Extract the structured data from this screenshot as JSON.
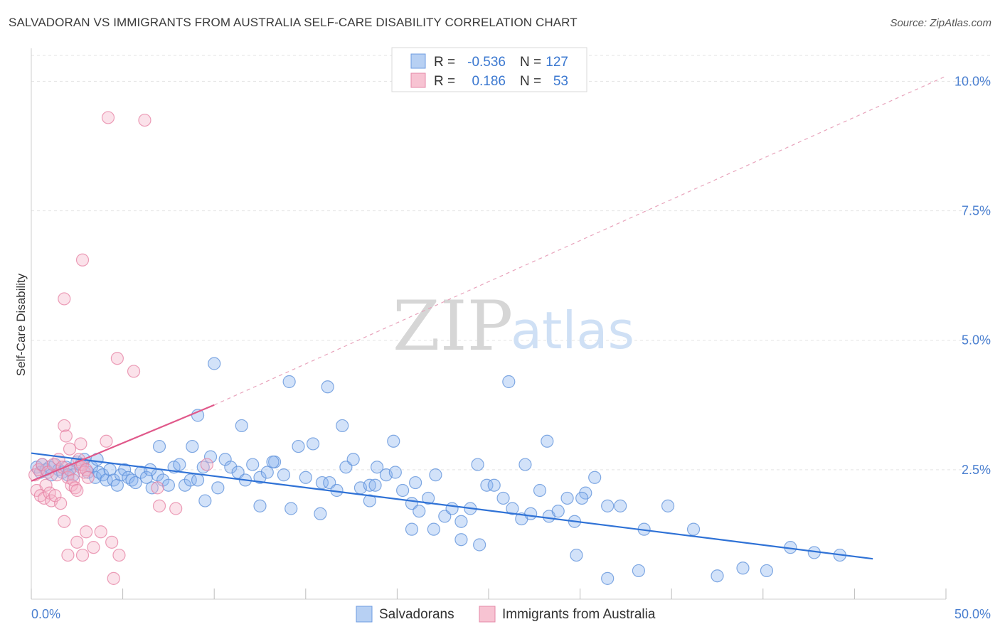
{
  "title": "SALVADORAN VS IMMIGRANTS FROM AUSTRALIA SELF-CARE DISABILITY CORRELATION CHART",
  "source": "Source: ZipAtlas.com",
  "watermark": {
    "zip": "ZIP",
    "atlas": "atlas"
  },
  "chart_data": {
    "type": "scatter",
    "xlabel": "",
    "ylabel": "Self-Care Disability",
    "xlim": [
      0,
      50
    ],
    "ylim": [
      0,
      10.5
    ],
    "x_tick_labels": [
      "0.0%",
      "50.0%"
    ],
    "x_ticks": [
      0,
      5,
      10,
      15,
      20,
      25,
      30,
      35,
      40,
      45,
      50
    ],
    "y_ticks": [
      2.5,
      5.0,
      7.5,
      10.0
    ],
    "y_tick_labels": [
      "2.5%",
      "5.0%",
      "7.5%",
      "10.0%"
    ],
    "legend": {
      "entries": [
        {
          "r_label": "R =",
          "r_value": "-0.536",
          "n_label": "N =",
          "n_value": "127"
        },
        {
          "r_label": "R =",
          "r_value": "0.186",
          "n_label": "N =",
          "n_value": "53"
        }
      ]
    },
    "series": [
      {
        "name": "Salvadorans",
        "color": "#8ab4ee",
        "stroke": "#5b8fd9",
        "trend": {
          "x0": 0,
          "y0": 2.82,
          "x1": 46,
          "y1": 0.78,
          "color": "#2f72d6"
        },
        "points": [
          [
            0.3,
            2.55
          ],
          [
            0.5,
            2.45
          ],
          [
            0.6,
            2.6
          ],
          [
            0.8,
            2.5
          ],
          [
            1.0,
            2.55
          ],
          [
            1.1,
            2.4
          ],
          [
            1.3,
            2.6
          ],
          [
            1.5,
            2.5
          ],
          [
            1.7,
            2.45
          ],
          [
            1.9,
            2.55
          ],
          [
            2.1,
            2.5
          ],
          [
            2.3,
            2.4
          ],
          [
            2.5,
            2.65
          ],
          [
            2.7,
            2.6
          ],
          [
            2.9,
            2.7
          ],
          [
            3.1,
            2.45
          ],
          [
            3.3,
            2.55
          ],
          [
            3.5,
            2.35
          ],
          [
            3.7,
            2.45
          ],
          [
            3.9,
            2.4
          ],
          [
            4.1,
            2.3
          ],
          [
            4.3,
            2.5
          ],
          [
            4.5,
            2.3
          ],
          [
            4.7,
            2.2
          ],
          [
            4.9,
            2.4
          ],
          [
            5.1,
            2.5
          ],
          [
            5.3,
            2.35
          ],
          [
            5.5,
            2.3
          ],
          [
            5.7,
            2.25
          ],
          [
            6.0,
            2.45
          ],
          [
            6.3,
            2.35
          ],
          [
            6.6,
            2.15
          ],
          [
            6.9,
            2.4
          ],
          [
            7.2,
            2.3
          ],
          [
            7.5,
            2.2
          ],
          [
            7.8,
            2.55
          ],
          [
            8.1,
            2.6
          ],
          [
            8.4,
            2.2
          ],
          [
            8.7,
            2.3
          ],
          [
            9.1,
            2.3
          ],
          [
            9.4,
            2.55
          ],
          [
            9.8,
            2.75
          ],
          [
            10.2,
            2.15
          ],
          [
            10.6,
            2.7
          ],
          [
            10.9,
            2.55
          ],
          [
            11.3,
            2.45
          ],
          [
            11.7,
            2.3
          ],
          [
            12.1,
            2.6
          ],
          [
            12.5,
            2.35
          ],
          [
            12.9,
            2.45
          ],
          [
            13.3,
            2.65
          ],
          [
            13.8,
            2.4
          ],
          [
            14.2,
            1.75
          ],
          [
            14.6,
            2.95
          ],
          [
            15.0,
            2.35
          ],
          [
            15.4,
            3.0
          ],
          [
            15.9,
            2.25
          ],
          [
            16.3,
            2.25
          ],
          [
            16.7,
            2.1
          ],
          [
            17.2,
            2.55
          ],
          [
            17.6,
            2.7
          ],
          [
            18.0,
            2.15
          ],
          [
            18.5,
            2.2
          ],
          [
            18.9,
            2.55
          ],
          [
            19.4,
            2.4
          ],
          [
            19.9,
            2.45
          ],
          [
            20.3,
            2.1
          ],
          [
            20.8,
            1.85
          ],
          [
            21.2,
            1.7
          ],
          [
            21.7,
            1.95
          ],
          [
            22.1,
            2.4
          ],
          [
            22.6,
            1.6
          ],
          [
            23.0,
            1.75
          ],
          [
            23.5,
            1.5
          ],
          [
            24.0,
            1.75
          ],
          [
            24.4,
            2.6
          ],
          [
            24.9,
            2.2
          ],
          [
            25.3,
            2.2
          ],
          [
            25.8,
            1.95
          ],
          [
            26.3,
            1.75
          ],
          [
            26.8,
            1.55
          ],
          [
            27.3,
            1.65
          ],
          [
            27.8,
            2.1
          ],
          [
            28.3,
            1.6
          ],
          [
            28.8,
            1.7
          ],
          [
            29.3,
            1.95
          ],
          [
            29.7,
            1.5
          ],
          [
            30.3,
            2.05
          ],
          [
            30.8,
            2.35
          ],
          [
            31.5,
            1.8
          ],
          [
            32.2,
            1.8
          ],
          [
            33.5,
            1.35
          ],
          [
            34.8,
            1.8
          ],
          [
            36.2,
            1.35
          ],
          [
            37.5,
            0.45
          ],
          [
            38.9,
            0.6
          ],
          [
            40.2,
            0.55
          ],
          [
            41.5,
            1.0
          ],
          [
            42.8,
            0.9
          ],
          [
            44.2,
            0.85
          ],
          [
            10.0,
            4.55
          ],
          [
            14.1,
            4.2
          ],
          [
            16.2,
            4.1
          ],
          [
            17.0,
            3.35
          ],
          [
            11.5,
            3.35
          ],
          [
            8.8,
            2.95
          ],
          [
            7.0,
            2.95
          ],
          [
            19.8,
            3.05
          ],
          [
            18.5,
            1.9
          ],
          [
            20.8,
            1.35
          ],
          [
            23.5,
            1.15
          ],
          [
            12.5,
            1.8
          ],
          [
            9.5,
            1.9
          ],
          [
            9.1,
            3.55
          ],
          [
            30.1,
            1.95
          ],
          [
            22.0,
            1.35
          ],
          [
            24.5,
            1.05
          ],
          [
            27.0,
            2.6
          ],
          [
            31.5,
            0.4
          ],
          [
            33.2,
            0.55
          ],
          [
            28.2,
            3.05
          ],
          [
            29.8,
            0.85
          ],
          [
            26.1,
            4.2
          ],
          [
            13.2,
            2.65
          ],
          [
            15.8,
            1.65
          ],
          [
            21.0,
            2.25
          ],
          [
            18.8,
            2.2
          ],
          [
            6.5,
            2.5
          ],
          [
            3.6,
            2.7
          ],
          [
            2.0,
            2.4
          ]
        ]
      },
      {
        "name": "Immigrants from Australia",
        "color": "#f5b4c8",
        "stroke": "#e67fa2",
        "trend": {
          "x0": 0,
          "y0": 2.28,
          "x1": 10,
          "y1": 3.75,
          "color": "#e0588a",
          "dash_to": {
            "x": 50,
            "y": 10.1
          }
        },
        "points": [
          [
            0.2,
            2.4
          ],
          [
            0.3,
            2.1
          ],
          [
            0.4,
            2.5
          ],
          [
            0.5,
            2.0
          ],
          [
            0.6,
            2.6
          ],
          [
            0.7,
            1.95
          ],
          [
            0.8,
            2.2
          ],
          [
            0.9,
            2.45
          ],
          [
            1.0,
            2.05
          ],
          [
            1.1,
            1.9
          ],
          [
            1.2,
            2.6
          ],
          [
            1.3,
            2.0
          ],
          [
            1.4,
            2.4
          ],
          [
            1.5,
            2.7
          ],
          [
            1.6,
            1.85
          ],
          [
            1.7,
            2.55
          ],
          [
            1.8,
            3.35
          ],
          [
            1.9,
            3.15
          ],
          [
            2.0,
            2.35
          ],
          [
            2.1,
            2.5
          ],
          [
            2.2,
            2.2
          ],
          [
            2.3,
            2.3
          ],
          [
            2.4,
            2.15
          ],
          [
            2.5,
            2.1
          ],
          [
            2.6,
            2.7
          ],
          [
            2.7,
            2.55
          ],
          [
            2.8,
            2.6
          ],
          [
            2.9,
            2.45
          ],
          [
            3.0,
            2.5
          ],
          [
            3.1,
            2.35
          ],
          [
            1.8,
            1.5
          ],
          [
            2.5,
            1.1
          ],
          [
            2.0,
            0.85
          ],
          [
            2.8,
            0.85
          ],
          [
            3.0,
            1.3
          ],
          [
            3.4,
            1.0
          ],
          [
            3.8,
            1.3
          ],
          [
            4.1,
            3.05
          ],
          [
            4.4,
            1.1
          ],
          [
            4.8,
            0.85
          ],
          [
            4.2,
            9.3
          ],
          [
            6.2,
            9.25
          ],
          [
            2.8,
            6.55
          ],
          [
            1.8,
            5.8
          ],
          [
            4.7,
            4.65
          ],
          [
            5.6,
            4.4
          ],
          [
            2.7,
            3.0
          ],
          [
            2.1,
            2.9
          ],
          [
            4.5,
            0.4
          ],
          [
            6.9,
            2.15
          ],
          [
            7.0,
            1.8
          ],
          [
            7.9,
            1.75
          ],
          [
            9.6,
            2.6
          ]
        ]
      }
    ]
  }
}
